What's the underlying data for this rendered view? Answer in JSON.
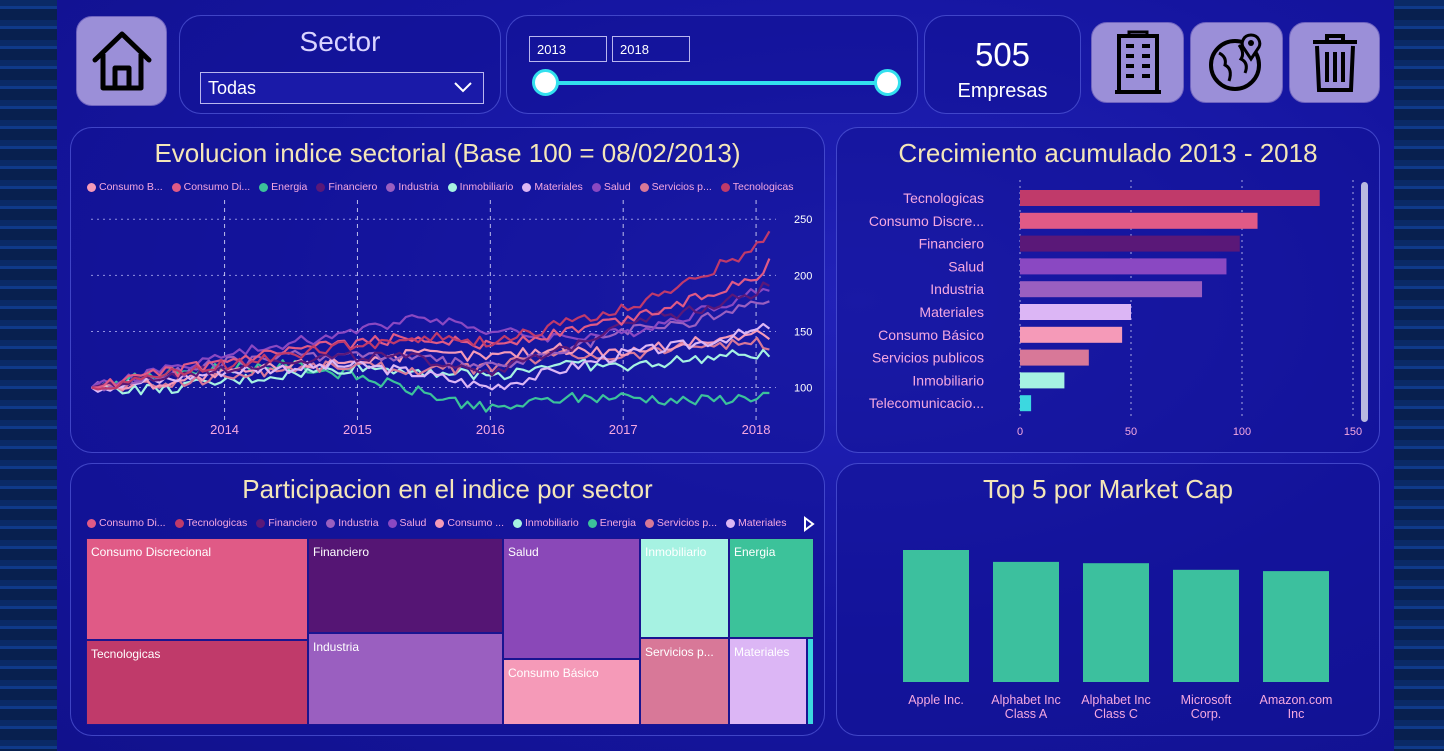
{
  "header": {
    "sector_slicer": {
      "title": "Sector",
      "selected": "Todas"
    },
    "date_range": {
      "start": "2013",
      "end": "2018",
      "range_start_fraction": 0.0,
      "range_end_fraction": 1.0
    },
    "kpi": {
      "value": "505",
      "label": "Empresas"
    },
    "icons": [
      "home-icon",
      "building-icon",
      "globe-pin-icon",
      "trash-icon"
    ]
  },
  "line_panel": {
    "title": "Evolucion indice sectorial (Base 100 = 08/02/2013)",
    "legend": [
      {
        "label": "Consumo B...",
        "color": "#f59ab8"
      },
      {
        "label": "Consumo Di...",
        "color": "#e05a86"
      },
      {
        "label": "Energia",
        "color": "#3cc29a"
      },
      {
        "label": "Financiero",
        "color": "#5a1878"
      },
      {
        "label": "Industria",
        "color": "#9a5fc0"
      },
      {
        "label": "Inmobiliario",
        "color": "#a6f2e2"
      },
      {
        "label": "Materiales",
        "color": "#dcb6f5"
      },
      {
        "label": "Salud",
        "color": "#8a48c2"
      },
      {
        "label": "Servicios p...",
        "color": "#d87898"
      },
      {
        "label": "Tecnologicas",
        "color": "#c03a6a"
      }
    ]
  },
  "bar_panel": {
    "title": "Crecimiento acumulado 2013 - 2018"
  },
  "treemap_panel": {
    "title": "Participacion en el indice por sector",
    "legend": [
      {
        "label": "Consumo Di...",
        "color": "#e05a86"
      },
      {
        "label": "Tecnologicas",
        "color": "#c03a6a"
      },
      {
        "label": "Financiero",
        "color": "#5a1878"
      },
      {
        "label": "Industria",
        "color": "#9a5fc0"
      },
      {
        "label": "Salud",
        "color": "#8a48c2"
      },
      {
        "label": "Consumo ...",
        "color": "#f59ab8"
      },
      {
        "label": "Inmobiliario",
        "color": "#a6f2e2"
      },
      {
        "label": "Energia",
        "color": "#3cc29a"
      },
      {
        "label": "Servicios p...",
        "color": "#d87898"
      },
      {
        "label": "Materiales",
        "color": "#dcb6f5"
      }
    ],
    "cells": [
      {
        "label": "Consumo Discrecional",
        "color": "#e05a86"
      },
      {
        "label": "Tecnologicas",
        "color": "#c03a6a"
      },
      {
        "label": "Financiero",
        "color": "#551574"
      },
      {
        "label": "Industria",
        "color": "#9a5fc0"
      },
      {
        "label": "Salud",
        "color": "#8a48b8"
      },
      {
        "label": "Consumo Básico",
        "color": "#f59ab8"
      },
      {
        "label": "Inmobiliario",
        "color": "#a6f2e2"
      },
      {
        "label": "Energia",
        "color": "#3cc29a"
      },
      {
        "label": "Servicios p...",
        "color": "#d87898"
      },
      {
        "label": "Materiales",
        "color": "#dcb6f5"
      }
    ]
  },
  "top5_panel": {
    "title": "Top 5 por Market Cap"
  },
  "chart_data": [
    {
      "type": "line",
      "title": "Evolucion indice sectorial (Base 100 = 08/02/2013)",
      "x_ticks": [
        "2014",
        "2015",
        "2016",
        "2017",
        "2018"
      ],
      "y_ticks": [
        100,
        150,
        200,
        250
      ],
      "ylim": [
        80,
        260
      ],
      "x": [
        "2013",
        "2013.5",
        "2014",
        "2014.5",
        "2015",
        "2015.5",
        "2016",
        "2016.5",
        "2017",
        "2017.5",
        "2018",
        "2018.1"
      ],
      "series": [
        {
          "name": "Tecnologicas",
          "color": "#c03a6a",
          "values": [
            100,
            110,
            120,
            130,
            138,
            145,
            140,
            155,
            170,
            195,
            225,
            235
          ]
        },
        {
          "name": "Consumo Di...",
          "color": "#e05a86",
          "values": [
            100,
            112,
            122,
            132,
            140,
            145,
            138,
            148,
            160,
            178,
            200,
            210
          ]
        },
        {
          "name": "Financiero",
          "color": "#5a1878",
          "values": [
            100,
            108,
            118,
            125,
            128,
            125,
            115,
            130,
            160,
            168,
            185,
            195
          ]
        },
        {
          "name": "Salud",
          "color": "#8a48c2",
          "values": [
            100,
            115,
            128,
            140,
            150,
            165,
            150,
            145,
            148,
            165,
            185,
            190
          ]
        },
        {
          "name": "Industria",
          "color": "#9a5fc0",
          "values": [
            100,
            110,
            122,
            128,
            130,
            125,
            118,
            130,
            150,
            158,
            175,
            180
          ]
        },
        {
          "name": "Materiales",
          "color": "#dcb6f5",
          "values": [
            100,
            106,
            115,
            118,
            120,
            112,
            100,
            115,
            130,
            138,
            150,
            155
          ]
        },
        {
          "name": "Consumo B...",
          "color": "#f59ab8",
          "values": [
            100,
            104,
            112,
            120,
            125,
            130,
            128,
            135,
            132,
            140,
            148,
            145
          ]
        },
        {
          "name": "Servicios p...",
          "color": "#d87898",
          "values": [
            100,
            102,
            110,
            118,
            120,
            115,
            118,
            130,
            128,
            138,
            140,
            135
          ]
        },
        {
          "name": "Inmobiliario",
          "color": "#a6f2e2",
          "values": [
            100,
            98,
            105,
            112,
            118,
            115,
            110,
            122,
            118,
            125,
            130,
            128
          ]
        },
        {
          "name": "Energia",
          "color": "#3cc29a",
          "values": [
            100,
            112,
            118,
            120,
            110,
            95,
            80,
            90,
            92,
            88,
            92,
            95
          ]
        }
      ],
      "grid": true
    },
    {
      "type": "bar",
      "orientation": "horizontal",
      "title": "Crecimiento acumulado 2013 - 2018",
      "categories": [
        "Tecnologicas",
        "Consumo Discre...",
        "Financiero",
        "Salud",
        "Industria",
        "Materiales",
        "Consumo Básico",
        "Servicios publicos",
        "Inmobiliario",
        "Telecomunicacio..."
      ],
      "values": [
        135,
        107,
        99,
        93,
        82,
        50,
        46,
        31,
        20,
        5
      ],
      "colors": [
        "#c03a6a",
        "#e05a86",
        "#5a1878",
        "#8a48c2",
        "#9a5fc0",
        "#dcb6f5",
        "#f59ab8",
        "#d87898",
        "#a6f2e2",
        "#3cd8e0"
      ],
      "x_ticks": [
        0,
        50,
        100,
        150
      ],
      "xlim": [
        0,
        150
      ]
    },
    {
      "type": "bar",
      "title": "Top 5 por Market Cap",
      "categories": [
        "Apple Inc.",
        "Alphabet Inc Class A",
        "Alphabet Inc Class C",
        "Microsoft Corp.",
        "Amazon.com Inc"
      ],
      "values": [
        100,
        91,
        90,
        85,
        84
      ],
      "color": "#3cc09e",
      "ylim": [
        0,
        100
      ]
    }
  ]
}
